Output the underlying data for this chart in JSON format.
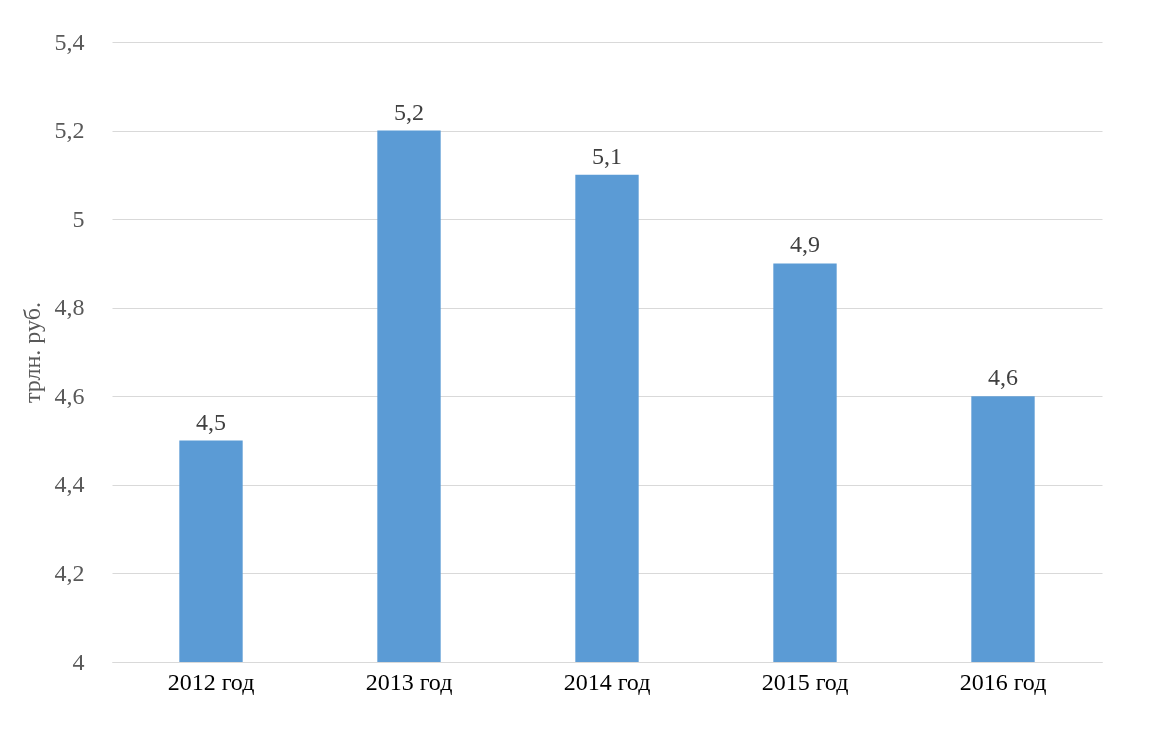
{
  "chart_data": {
    "type": "bar",
    "ylabel": "трлн. руб.",
    "categories": [
      "2012 год",
      "2013 год",
      "2014 год",
      "2015 год",
      "2016 год"
    ],
    "values": [
      4.5,
      5.2,
      5.1,
      4.9,
      4.6
    ],
    "value_labels": [
      "4,5",
      "5,2",
      "5,1",
      "4,9",
      "4,6"
    ],
    "color": "#5b9bd5",
    "ylim": [
      4,
      5.4
    ],
    "yticks": [
      4,
      {
        "value": 4.2,
        "label": "4,2"
      },
      {
        "value": 4.4,
        "label": "4,4"
      },
      {
        "value": 4.6,
        "label": "4,6"
      },
      {
        "value": 4.8,
        "label": "4,8"
      },
      5,
      {
        "value": 5.2,
        "label": "5,2"
      },
      {
        "value": 5.4,
        "label": "5,4"
      }
    ],
    "grid": "y"
  }
}
